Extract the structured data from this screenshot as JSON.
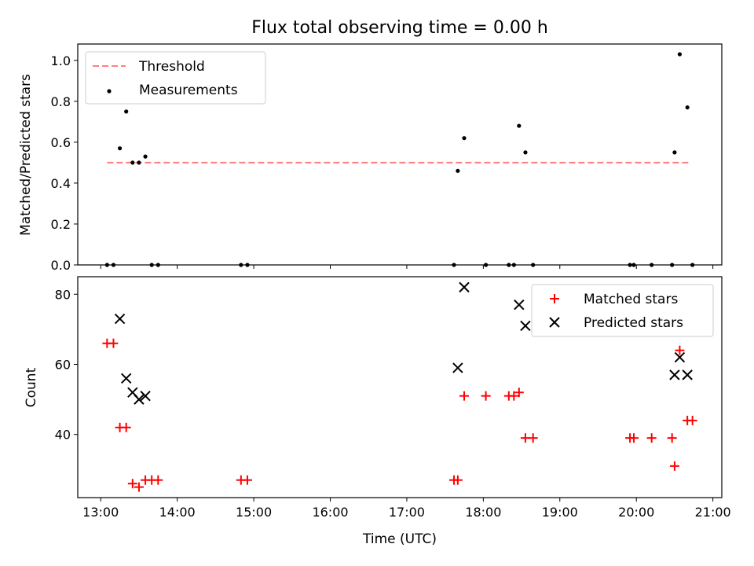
{
  "chart_data": [
    {
      "type": "scatter",
      "title": "Flux total observing time = 0.00 h",
      "xlabel": "",
      "ylabel": "Matched/Predicted stars",
      "xlim": [
        "12:42",
        "21:07"
      ],
      "ylim": [
        0,
        1.08
      ],
      "xticks": [
        "13:00",
        "14:00",
        "15:00",
        "16:00",
        "17:00",
        "18:00",
        "19:00",
        "20:00",
        "21:00"
      ],
      "yticks": [
        "0.0",
        "0.2",
        "0.4",
        "0.6",
        "0.8",
        "1.0"
      ],
      "legend_position": "top-left",
      "threshold": {
        "name": "Threshold",
        "value": 0.5,
        "x_range": [
          "13:05",
          "20:43"
        ],
        "color": "#ff7f7f",
        "style": "dashed"
      },
      "series": [
        {
          "name": "Measurements",
          "color": "#000000",
          "marker": "dot",
          "x": [
            "13:05",
            "13:10",
            "13:15",
            "13:20",
            "13:25",
            "13:30",
            "13:35",
            "13:40",
            "13:45",
            "14:50",
            "14:55",
            "17:37",
            "17:40",
            "17:45",
            "18:02",
            "18:20",
            "18:24",
            "18:28",
            "18:33",
            "18:39",
            "19:55",
            "19:58",
            "20:12",
            "20:28",
            "20:30",
            "20:34",
            "20:40",
            "20:44"
          ],
          "y": [
            0.0,
            0.0,
            0.57,
            0.75,
            0.5,
            0.5,
            0.53,
            0.0,
            0.0,
            0.0,
            0.0,
            0.0,
            0.46,
            0.62,
            0.0,
            0.0,
            0.0,
            0.68,
            0.55,
            0.0,
            0.0,
            0.0,
            0.0,
            0.0,
            0.55,
            1.03,
            0.77,
            0.0
          ]
        }
      ]
    },
    {
      "type": "scatter",
      "title": "",
      "xlabel": "Time (UTC)",
      "ylabel": "Count",
      "xlim": [
        "12:42",
        "21:07"
      ],
      "ylim": [
        22,
        85
      ],
      "xticks": [
        "13:00",
        "14:00",
        "15:00",
        "16:00",
        "17:00",
        "18:00",
        "19:00",
        "20:00",
        "21:00"
      ],
      "yticks": [
        "40",
        "60",
        "80"
      ],
      "legend_position": "top-right",
      "series": [
        {
          "name": "Matched stars",
          "color": "#ff0000",
          "marker": "plus",
          "x": [
            "13:05",
            "13:10",
            "13:15",
            "13:20",
            "13:25",
            "13:30",
            "13:35",
            "13:40",
            "13:45",
            "14:50",
            "14:55",
            "17:37",
            "17:40",
            "17:45",
            "18:02",
            "18:20",
            "18:24",
            "18:28",
            "18:33",
            "18:39",
            "19:55",
            "19:58",
            "20:12",
            "20:28",
            "20:30",
            "20:34",
            "20:40",
            "20:44"
          ],
          "y": [
            66,
            66,
            42,
            42,
            26,
            25,
            27,
            27,
            27,
            27,
            27,
            27,
            27,
            51,
            51,
            51,
            51,
            52,
            39,
            39,
            39,
            39,
            39,
            39,
            31,
            64,
            44,
            44
          ]
        },
        {
          "name": "Predicted stars",
          "color": "#000000",
          "marker": "x",
          "x": [
            "13:15",
            "13:20",
            "13:25",
            "13:30",
            "13:35",
            "17:40",
            "17:45",
            "18:28",
            "18:33",
            "20:30",
            "20:34",
            "20:40"
          ],
          "y": [
            73,
            56,
            52,
            50,
            51,
            59,
            82,
            77,
            71,
            57,
            62,
            57
          ]
        }
      ]
    }
  ]
}
